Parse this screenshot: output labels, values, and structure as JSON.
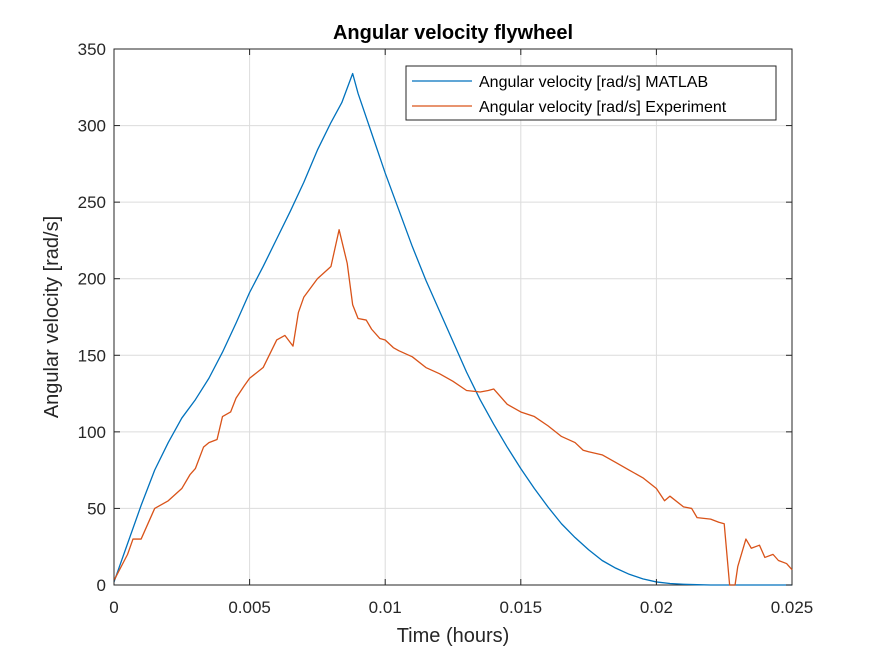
{
  "chart_data": {
    "type": "line",
    "title": "Angular velocity flywheel",
    "xlabel": "Time (hours)",
    "ylabel": "Angular velocity [rad/s]",
    "xlim": [
      0,
      0.025
    ],
    "ylim": [
      0,
      350
    ],
    "xticks": [
      0,
      0.005,
      0.01,
      0.015,
      0.02,
      0.025
    ],
    "xtick_labels": [
      "0",
      "0.005",
      "0.01",
      "0.015",
      "0.02",
      "0.025"
    ],
    "yticks": [
      0,
      50,
      100,
      150,
      200,
      250,
      300,
      350
    ],
    "ytick_labels": [
      "0",
      "50",
      "100",
      "150",
      "200",
      "250",
      "300",
      "350"
    ],
    "grid": true,
    "legend_position": "top-right",
    "series": [
      {
        "name": "Angular velocity [rad/s] MATLAB",
        "color": "#0072BD",
        "x": [
          0,
          0.0005,
          0.001,
          0.0015,
          0.002,
          0.0025,
          0.003,
          0.0035,
          0.004,
          0.0045,
          0.005,
          0.0055,
          0.006,
          0.0065,
          0.007,
          0.0075,
          0.008,
          0.0084,
          0.0088,
          0.009,
          0.0095,
          0.01,
          0.0105,
          0.011,
          0.0115,
          0.012,
          0.0125,
          0.013,
          0.0135,
          0.014,
          0.0145,
          0.015,
          0.0155,
          0.016,
          0.0165,
          0.017,
          0.0175,
          0.018,
          0.0185,
          0.019,
          0.0195,
          0.02,
          0.0205,
          0.021,
          0.0215,
          0.022,
          0.0222,
          0.0225,
          0.023,
          0.024,
          0.025
        ],
        "y": [
          2,
          27,
          52,
          75,
          93,
          109,
          121,
          135,
          152,
          171,
          191,
          208,
          226,
          244,
          263,
          284,
          302,
          315,
          334,
          321,
          295,
          269,
          245,
          221,
          199,
          179,
          159,
          139,
          121,
          105,
          90,
          76,
          63,
          51,
          40,
          31,
          23,
          16,
          11,
          7,
          4,
          2,
          1,
          0.5,
          0.2,
          0,
          0,
          0,
          0,
          0,
          0
        ]
      },
      {
        "name": "Angular velocity [rad/s] Experiment",
        "color": "#D95319",
        "x": [
          0,
          0.0005,
          0.0007,
          0.001,
          0.0015,
          0.002,
          0.0025,
          0.0028,
          0.003,
          0.0033,
          0.0035,
          0.0038,
          0.004,
          0.0043,
          0.0045,
          0.0048,
          0.005,
          0.0055,
          0.006,
          0.0063,
          0.0066,
          0.0068,
          0.007,
          0.0075,
          0.008,
          0.0083,
          0.0086,
          0.0088,
          0.009,
          0.0093,
          0.0095,
          0.0098,
          0.01,
          0.0103,
          0.0105,
          0.011,
          0.0115,
          0.012,
          0.0125,
          0.013,
          0.0135,
          0.0138,
          0.014,
          0.0145,
          0.015,
          0.0155,
          0.016,
          0.0165,
          0.017,
          0.0173,
          0.0175,
          0.018,
          0.0185,
          0.019,
          0.0195,
          0.02,
          0.0203,
          0.0205,
          0.021,
          0.0213,
          0.0215,
          0.022,
          0.0223,
          0.0225,
          0.0227,
          0.0229,
          0.023,
          0.0233,
          0.0235,
          0.0238,
          0.024,
          0.0243,
          0.0245,
          0.0248,
          0.025
        ],
        "y": [
          3,
          20,
          30,
          30,
          50,
          55,
          63,
          72,
          76,
          90,
          93,
          95,
          110,
          113,
          122,
          130,
          135,
          142,
          160,
          163,
          156,
          178,
          188,
          200,
          208,
          232,
          210,
          183,
          174,
          173,
          167,
          161,
          160,
          155,
          153,
          149,
          142,
          138,
          133,
          127,
          126,
          127,
          128,
          118,
          113,
          110,
          104,
          97,
          93,
          88,
          87,
          85,
          80,
          75,
          70,
          63,
          55,
          58,
          51,
          50,
          44,
          43,
          41,
          40,
          0,
          0,
          12,
          30,
          24,
          26,
          18,
          20,
          16,
          14,
          10
        ]
      }
    ]
  }
}
